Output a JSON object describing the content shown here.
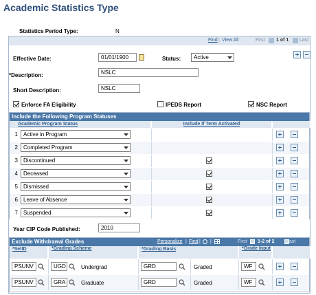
{
  "page": {
    "title": "Academic Statistics Type"
  },
  "period": {
    "label": "Statistics Period Type:",
    "value": "N"
  },
  "top_nav": {
    "find": "Find",
    "view_all": "View All",
    "first": "First",
    "range": "1 of 1",
    "last": "Last"
  },
  "form": {
    "effective_date_label": "Effective Date:",
    "effective_date_value": "01/01/1900",
    "status_label": "Status:",
    "status_value": "Active",
    "description_label": "*Description:",
    "description_value": "NSLC",
    "short_description_label": "Short Description:",
    "short_description_value": "NSLC",
    "enforce_fa_label": "Enforce FA Eligibility",
    "enforce_fa_checked": true,
    "ipeds_label": "IPEDS Report",
    "ipeds_checked": false,
    "nsc_label": "NSC Report",
    "nsc_checked": true
  },
  "program_statuses": {
    "title": "Include the Following Program Statuses",
    "col_status": "Academic Program Status",
    "col_term": "Include if Term Activated",
    "rows": [
      {
        "num": "1",
        "status": "Active in Program",
        "term": false
      },
      {
        "num": "2",
        "status": "Completed Program",
        "term": false
      },
      {
        "num": "3",
        "status": "Discontinued",
        "term": true
      },
      {
        "num": "4",
        "status": "Deceased",
        "term": true
      },
      {
        "num": "5",
        "status": "Dismissed",
        "term": true
      },
      {
        "num": "6",
        "status": "Leave of Absence",
        "term": true
      },
      {
        "num": "7",
        "status": "Suspended",
        "term": true
      }
    ]
  },
  "cip": {
    "label": "Year CIP Code Published:",
    "value": "2010"
  },
  "withdrawal": {
    "title": "Exclude Withdrawal Grades",
    "personalize": "Personalize",
    "find": "Find",
    "first": "First",
    "range": "1-2 of 2",
    "last": "Last",
    "col_setid": "*SetID",
    "col_scheme": "*Grading Scheme",
    "col_basis": "*Grading Basis",
    "col_input": "*Grade Input",
    "rows": [
      {
        "setid": "PSUNV",
        "scheme": "UGD",
        "scheme_desc": "Undergrad",
        "basis": "GRD",
        "basis_desc": "Graded",
        "input": "WF"
      },
      {
        "setid": "PSUNV",
        "scheme": "GRA",
        "scheme_desc": "Graduate",
        "basis": "GRD",
        "basis_desc": "Graded",
        "input": "WF"
      }
    ]
  },
  "colors": {
    "title": "#2e4f7a",
    "bar": "#4a78a8",
    "header": "#dfe7f1"
  },
  "icons": [
    "calendar-icon",
    "lookup-icon",
    "add-row-icon",
    "delete-row-icon",
    "dropdown-icon",
    "grid-icon",
    "zoom-icon"
  ]
}
